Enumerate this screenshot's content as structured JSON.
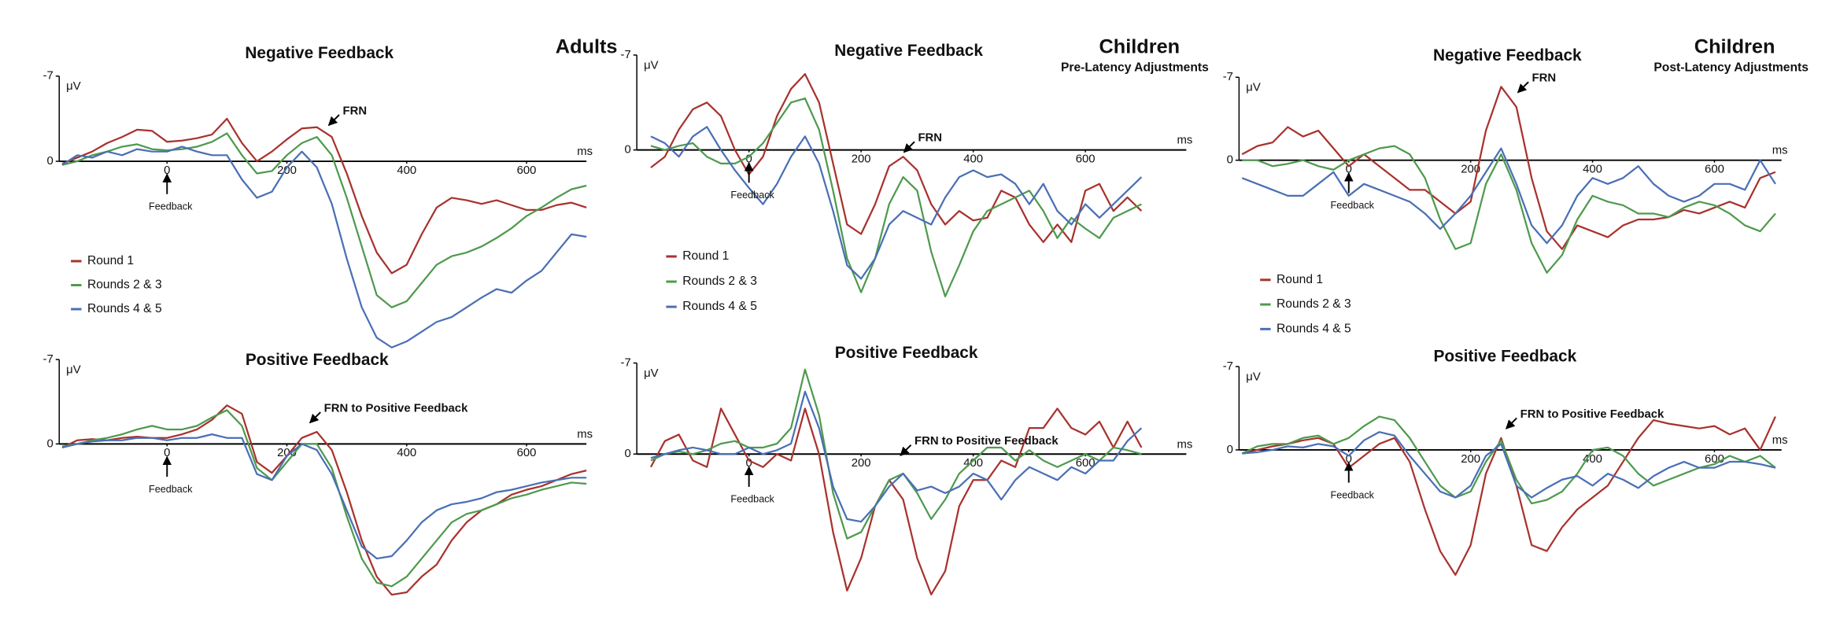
{
  "chart_data": [
    {
      "type": "line",
      "title": "Negative Feedback",
      "group": "Adults",
      "y_label": "μV",
      "x_label": "ms",
      "annotations": [
        "Feedback",
        "FRN"
      ],
      "xlim": [
        -180,
        700
      ],
      "ylim": [
        -7,
        16
      ],
      "y_inverted": true,
      "xticks": [
        0,
        200,
        400,
        600
      ],
      "yticks": [
        -7,
        0
      ],
      "legend": true,
      "x": [
        -175,
        -150,
        -125,
        -100,
        -75,
        -50,
        -25,
        0,
        25,
        50,
        75,
        100,
        125,
        150,
        175,
        200,
        225,
        250,
        275,
        300,
        325,
        350,
        375,
        400,
        425,
        450,
        475,
        500,
        525,
        550,
        575,
        600,
        625,
        650,
        675,
        700
      ],
      "series": [
        {
          "name": "Round 1",
          "color": "#a8322d",
          "values": [
            0.2,
            -0.3,
            -0.8,
            -1.5,
            -2.0,
            -2.6,
            -2.5,
            -1.6,
            -1.7,
            -1.9,
            -2.2,
            -3.5,
            -1.5,
            0,
            -0.8,
            -1.8,
            -2.7,
            -2.8,
            -2,
            1,
            4.5,
            7.5,
            9.2,
            8.5,
            6,
            3.8,
            3,
            3.2,
            3.5,
            3.2,
            3.6,
            4,
            4,
            3.6,
            3.4,
            3.8
          ]
        },
        {
          "name": "Rounds 2 & 3",
          "color": "#4e9a4e",
          "values": [
            0.3,
            0,
            -0.5,
            -0.8,
            -1.2,
            -1.4,
            -1.0,
            -0.9,
            -1.0,
            -1.2,
            -1.6,
            -2.3,
            -0.5,
            1.0,
            0.8,
            -0.5,
            -1.5,
            -2.0,
            -0.5,
            3,
            7,
            11,
            12,
            11.5,
            10,
            8.5,
            7.8,
            7.5,
            7,
            6.3,
            5.5,
            4.5,
            3.8,
            3,
            2.3,
            2.0
          ]
        },
        {
          "name": "Rounds 4 & 5",
          "color": "#4a6fb5",
          "values": [
            0.3,
            -0.5,
            -0.3,
            -0.8,
            -0.5,
            -1.0,
            -0.8,
            -0.8,
            -1.2,
            -0.8,
            -0.5,
            -0.5,
            1.5,
            3,
            2.5,
            0.5,
            -0.8,
            0.5,
            3.5,
            8,
            12,
            14.5,
            15.3,
            14.8,
            14,
            13.2,
            12.8,
            12,
            11.2,
            10.5,
            10.8,
            9.8,
            9,
            7.5,
            6,
            6.2
          ]
        }
      ]
    },
    {
      "type": "line",
      "title": "Negative Feedback",
      "group": "Children",
      "group_subtitle": "Pre-Latency Adjustments",
      "y_label": "μV",
      "x_label": "ms",
      "annotations": [
        "Feedback",
        "FRN"
      ],
      "xlim": [
        -200,
        780
      ],
      "ylim": [
        -7,
        12
      ],
      "y_inverted": true,
      "xticks": [
        0,
        200,
        400,
        600
      ],
      "yticks": [
        -7,
        0
      ],
      "legend": true,
      "x": [
        -175,
        -150,
        -125,
        -100,
        -75,
        -50,
        -25,
        0,
        25,
        50,
        75,
        100,
        125,
        150,
        175,
        200,
        225,
        250,
        275,
        300,
        325,
        350,
        375,
        400,
        425,
        450,
        475,
        500,
        525,
        550,
        575,
        600,
        625,
        650,
        675,
        700
      ],
      "series": [
        {
          "name": "Round 1",
          "color": "#a8322d",
          "values": [
            1.3,
            0.5,
            -1.5,
            -3.0,
            -3.5,
            -2.5,
            0,
            1.8,
            0.5,
            -2.5,
            -4.5,
            -5.6,
            -3.5,
            1,
            5.5,
            6.2,
            4,
            1.2,
            0.5,
            1.5,
            4,
            5.5,
            4.5,
            5.2,
            5,
            3,
            3.5,
            5.5,
            6.8,
            5.5,
            6.8,
            3,
            2.5,
            4.5,
            3.5,
            4.5
          ]
        },
        {
          "name": "Rounds 2 & 3",
          "color": "#4e9a4e",
          "values": [
            -0.3,
            0,
            -0.3,
            -0.5,
            0.5,
            1.0,
            1.0,
            0.5,
            -0.5,
            -2,
            -3.5,
            -3.8,
            -1.5,
            3,
            8,
            10.5,
            8,
            4,
            2,
            3,
            7.5,
            10.8,
            8.5,
            6,
            4.5,
            4,
            3.5,
            3,
            4.5,
            6.5,
            5,
            5.8,
            6.5,
            5,
            4.5,
            4
          ]
        },
        {
          "name": "Rounds 4 & 5",
          "color": "#4a6fb5",
          "values": [
            -1.0,
            -0.5,
            0.5,
            -1.0,
            -1.7,
            0,
            1.5,
            2.8,
            4,
            2.5,
            0.5,
            -1,
            1,
            4.5,
            8.5,
            9.5,
            8,
            5.5,
            4.5,
            5,
            5.5,
            3.5,
            2,
            1.5,
            2,
            1.8,
            2.5,
            4,
            2.5,
            4.5,
            5.5,
            4,
            5,
            4,
            3,
            2
          ]
        }
      ]
    },
    {
      "type": "line",
      "title": "Negative Feedback",
      "group": "Children",
      "group_subtitle": "Post-Latency Adjustments",
      "y_label": "μV",
      "x_label": "ms",
      "annotations": [
        "Feedback",
        "FRN"
      ],
      "xlim": [
        -180,
        710
      ],
      "ylim": [
        -7,
        10
      ],
      "y_inverted": true,
      "xticks": [
        0,
        200,
        400,
        600
      ],
      "yticks": [
        -7,
        0
      ],
      "legend": true,
      "x": [
        -175,
        -150,
        -125,
        -100,
        -75,
        -50,
        -25,
        0,
        25,
        50,
        75,
        100,
        125,
        150,
        175,
        200,
        225,
        250,
        275,
        300,
        325,
        350,
        375,
        400,
        425,
        450,
        475,
        500,
        525,
        550,
        575,
        600,
        625,
        650,
        675,
        700
      ],
      "series": [
        {
          "name": "Round 1",
          "color": "#a8322d",
          "values": [
            -0.5,
            -1.2,
            -1.5,
            -2.8,
            -2,
            -2.5,
            -1,
            0.5,
            -0.5,
            0.5,
            1.5,
            2.5,
            2.5,
            3.5,
            4.5,
            3.5,
            -2.5,
            -6.2,
            -4.5,
            1.5,
            6,
            7.5,
            5.5,
            6,
            6.5,
            5.5,
            5,
            5,
            4.8,
            4.2,
            4.5,
            4,
            3.5,
            4,
            1.5,
            1
          ]
        },
        {
          "name": "Rounds 2 & 3",
          "color": "#4e9a4e",
          "values": [
            0,
            0,
            0.5,
            0.3,
            0,
            0.5,
            0.8,
            0,
            -0.5,
            -1,
            -1.2,
            -0.5,
            1.5,
            5,
            7.5,
            7,
            2,
            -0.5,
            2.5,
            7,
            9.5,
            8,
            5,
            3,
            3.5,
            3.8,
            4.5,
            4.5,
            4.8,
            4,
            3.5,
            3.8,
            4.5,
            5.5,
            6,
            4.5
          ]
        },
        {
          "name": "Rounds 4 & 5",
          "color": "#4a6fb5",
          "values": [
            1.5,
            2,
            2.5,
            3,
            3,
            2,
            1,
            3,
            2,
            2.5,
            3,
            3.5,
            4.5,
            5.8,
            4.5,
            3,
            1,
            -1,
            2,
            5.5,
            7,
            5.5,
            3,
            1.5,
            2,
            1.5,
            0.5,
            2,
            3,
            3.5,
            3,
            2,
            2,
            2.5,
            0,
            2
          ]
        }
      ]
    },
    {
      "type": "line",
      "title": "Positive Feedback",
      "y_label": "μV",
      "x_label": "ms",
      "annotations": [
        "Feedback",
        "FRN to Positive Feedback"
      ],
      "xlim": [
        -180,
        700
      ],
      "ylim": [
        -7,
        13
      ],
      "y_inverted": true,
      "xticks": [
        0,
        200,
        400,
        600
      ],
      "yticks": [
        -7,
        0
      ],
      "legend": false,
      "x": [
        -175,
        -150,
        -125,
        -100,
        -75,
        -50,
        -25,
        0,
        25,
        50,
        75,
        100,
        125,
        150,
        175,
        200,
        225,
        250,
        275,
        300,
        325,
        350,
        375,
        400,
        425,
        450,
        475,
        500,
        525,
        550,
        575,
        600,
        625,
        650,
        675,
        700
      ],
      "series": [
        {
          "color": "#a8322d",
          "values": [
            0.3,
            -0.3,
            -0.4,
            -0.3,
            -0.5,
            -0.6,
            -0.5,
            -0.5,
            -0.8,
            -1.2,
            -2.0,
            -3.2,
            -2.5,
            1.5,
            2.4,
            1,
            -0.5,
            -1,
            0.5,
            4,
            8,
            11,
            12.5,
            12.3,
            11,
            10,
            8,
            6.5,
            5.5,
            5,
            4.2,
            3.8,
            3.5,
            3,
            2.5,
            2.2
          ]
        },
        {
          "color": "#4e9a4e",
          "values": [
            0.2,
            0,
            -0.3,
            -0.5,
            -0.8,
            -1.2,
            -1.5,
            -1.2,
            -1.2,
            -1.5,
            -2.2,
            -2.8,
            -1.5,
            2,
            3,
            1.5,
            0,
            0,
            2,
            6,
            9.5,
            11.5,
            11.8,
            11,
            9.5,
            8,
            6.5,
            5.8,
            5.5,
            5,
            4.5,
            4.2,
            3.8,
            3.5,
            3.2,
            3.3
          ]
        },
        {
          "color": "#4a6fb5",
          "values": [
            0.3,
            0,
            -0.2,
            -0.3,
            -0.3,
            -0.5,
            -0.5,
            -0.3,
            -0.5,
            -0.5,
            -0.8,
            -0.5,
            -0.5,
            2.5,
            3,
            1,
            0,
            0.5,
            2.5,
            5.5,
            8.5,
            9.5,
            9.3,
            8,
            6.5,
            5.5,
            5,
            4.8,
            4.5,
            4,
            3.8,
            3.5,
            3.2,
            3,
            2.8,
            2.8
          ]
        }
      ]
    },
    {
      "type": "line",
      "title": "Positive Feedback",
      "y_label": "μV",
      "x_label": "ms",
      "annotations": [
        "Feedback",
        "FRN to Positive Feedback"
      ],
      "xlim": [
        -200,
        780
      ],
      "ylim": [
        -7,
        12
      ],
      "y_inverted": true,
      "xticks": [
        0,
        200,
        400,
        600
      ],
      "yticks": [
        -7,
        0
      ],
      "legend": false,
      "x": [
        -175,
        -150,
        -125,
        -100,
        -75,
        -50,
        -25,
        0,
        25,
        50,
        75,
        100,
        125,
        150,
        175,
        200,
        225,
        250,
        275,
        300,
        325,
        350,
        375,
        400,
        425,
        450,
        475,
        500,
        525,
        550,
        575,
        600,
        625,
        650,
        675,
        700
      ],
      "series": [
        {
          "color": "#a8322d",
          "values": [
            1,
            -1,
            -1.5,
            0.5,
            1,
            -3.5,
            -1.5,
            0.5,
            1,
            0,
            0.5,
            -3.5,
            0,
            6,
            10.5,
            8,
            4,
            2,
            3.5,
            8,
            10.8,
            9,
            4,
            2,
            2,
            0.5,
            1,
            -2,
            -2,
            -3.5,
            -2,
            -1.5,
            -2.5,
            -0.5,
            -2.5,
            -0.5
          ]
        },
        {
          "color": "#4e9a4e",
          "values": [
            0.5,
            0,
            -0.2,
            0,
            -0.3,
            -0.8,
            -1,
            -0.5,
            -0.5,
            -0.8,
            -2,
            -6.5,
            -3,
            3,
            6.5,
            6,
            4,
            2,
            1.5,
            3,
            5,
            3.5,
            1.5,
            0.5,
            -0.5,
            -0.5,
            0.5,
            -0.3,
            0.5,
            1,
            0.5,
            0,
            0.5,
            -0.5,
            -0.3,
            0
          ]
        },
        {
          "color": "#4a6fb5",
          "values": [
            0.3,
            0,
            -0.3,
            -0.5,
            -0.3,
            0,
            0,
            -0.5,
            0,
            -0.3,
            -0.8,
            -4.8,
            -2,
            2.5,
            5,
            5.2,
            4,
            2.5,
            1.5,
            2.8,
            2.5,
            3,
            2.5,
            1.5,
            2,
            3.5,
            2,
            1,
            1.5,
            2,
            1,
            1.5,
            0.5,
            0.5,
            -1,
            -2
          ]
        }
      ]
    },
    {
      "type": "line",
      "title": "Positive Feedback",
      "y_label": "μV",
      "x_label": "ms",
      "annotations": [
        "Feedback",
        "FRN to Positive Feedback"
      ],
      "xlim": [
        -180,
        710
      ],
      "ylim": [
        -7,
        11
      ],
      "y_inverted": true,
      "xticks": [
        0,
        200,
        400,
        600
      ],
      "yticks": [
        -7,
        0
      ],
      "legend": false,
      "x": [
        -175,
        -150,
        -125,
        -100,
        -75,
        -50,
        -25,
        0,
        25,
        50,
        75,
        100,
        125,
        150,
        175,
        200,
        225,
        250,
        275,
        300,
        325,
        350,
        375,
        400,
        425,
        450,
        475,
        500,
        525,
        550,
        575,
        600,
        625,
        650,
        675,
        700
      ],
      "series": [
        {
          "color": "#a8322d",
          "values": [
            0.3,
            0,
            -0.3,
            -0.5,
            -0.8,
            -1,
            -0.5,
            1.5,
            0.5,
            -0.5,
            -1,
            1,
            5,
            8.5,
            10.5,
            8,
            2,
            -1,
            3,
            8,
            8.5,
            6.5,
            5,
            4,
            3,
            1,
            -1,
            -2.5,
            -2.2,
            -2,
            -1.8,
            -2,
            -1.3,
            -1.8,
            0,
            -2.8
          ]
        },
        {
          "color": "#4e9a4e",
          "values": [
            0.3,
            -0.3,
            -0.5,
            -0.5,
            -1,
            -1.2,
            -0.5,
            -1,
            -2,
            -2.8,
            -2.5,
            -1,
            1,
            3,
            4,
            3.5,
            1,
            -0.8,
            2.5,
            4.5,
            4.2,
            3.5,
            2,
            0,
            -0.2,
            0.5,
            2,
            3,
            2.5,
            2,
            1.5,
            1.2,
            0.5,
            1,
            0.5,
            1.5
          ]
        },
        {
          "color": "#4a6fb5",
          "values": [
            0.3,
            0.2,
            0,
            -0.3,
            -0.2,
            -0.5,
            -0.3,
            0.5,
            -0.8,
            -1.5,
            -1.2,
            0.5,
            2,
            3.5,
            4,
            3,
            0.5,
            -0.5,
            3,
            4,
            3.2,
            2.5,
            2.2,
            3,
            2,
            2.5,
            3.2,
            2.2,
            1.5,
            1,
            1.5,
            1.5,
            1,
            1,
            1.2,
            1.5
          ]
        }
      ]
    }
  ]
}
